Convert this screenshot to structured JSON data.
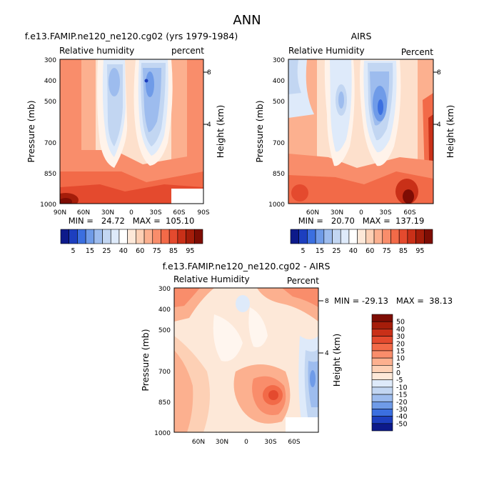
{
  "figure_title": "ANN",
  "chart_data": [
    {
      "type": "heatmap",
      "id": "model",
      "title": "f.e13.FAMIP.ne120_ne120.cg02 (yrs 1979-1984)",
      "left_label": "Relative humidity",
      "right_label": "percent",
      "ylabel": "Pressure (mb)",
      "y2label": "Height (km)",
      "x_ticks": [
        "90N",
        "60N",
        "30N",
        "0",
        "30S",
        "60S",
        "90S"
      ],
      "y_ticks": [
        "300",
        "400",
        "500",
        "700",
        "850",
        "1000"
      ],
      "y2_ticks": [
        "8",
        "4"
      ],
      "stats": "MIN =   24.72   MAX =  105.10",
      "colorbar_labels": [
        "5",
        "15",
        "25",
        "40",
        "60",
        "75",
        "85",
        "95"
      ],
      "colorbar_colors": [
        "#0d1a8a",
        "#1d3fbf",
        "#3b6fe0",
        "#6f9be8",
        "#9dbcee",
        "#c2d6f2",
        "#deeafa",
        "#ffffff",
        "#fde8d8",
        "#fdd0b5",
        "#fcb08f",
        "#f98d6b",
        "#f26a48",
        "#e44a2e",
        "#c93018",
        "#a51d0a",
        "#7e0d04"
      ],
      "description_values": "relative humidity percent by latitude and pressure"
    },
    {
      "type": "heatmap",
      "id": "obs",
      "title": "AIRS",
      "left_label": "Relative Humidity",
      "right_label": "Percent",
      "ylabel": "Pressure (mb)",
      "y2label": "Height (km)",
      "x_ticks": [
        "60N",
        "30N",
        "0",
        "30S",
        "60S"
      ],
      "y_ticks": [
        "300",
        "400",
        "500",
        "700",
        "850",
        "1000"
      ],
      "y2_ticks": [
        "8",
        "4"
      ],
      "stats": "MIN =   20.70   MAX =  137.19",
      "colorbar_labels": [
        "5",
        "15",
        "25",
        "40",
        "60",
        "75",
        "85",
        "95"
      ],
      "colorbar_colors": [
        "#0d1a8a",
        "#1d3fbf",
        "#3b6fe0",
        "#6f9be8",
        "#9dbcee",
        "#c2d6f2",
        "#deeafa",
        "#ffffff",
        "#fde8d8",
        "#fdd0b5",
        "#fcb08f",
        "#f98d6b",
        "#f26a48",
        "#e44a2e",
        "#c93018",
        "#a51d0a",
        "#7e0d04"
      ]
    },
    {
      "type": "heatmap",
      "id": "diff",
      "title": "f.e13.FAMIP.ne120_ne120.cg02 - AIRS",
      "left_label": "Relative Humidity",
      "right_label": "Percent",
      "ylabel": "Pressure (mb)",
      "y2label": "Height (km)",
      "x_ticks": [
        "60N",
        "30N",
        "0",
        "30S",
        "60S"
      ],
      "y_ticks": [
        "300",
        "400",
        "500",
        "700",
        "850",
        "1000"
      ],
      "y2_ticks": [
        "8",
        "4"
      ],
      "stats": "MIN = -29.13   MAX =  38.13",
      "colorbar_labels": [
        "50",
        "40",
        "30",
        "20",
        "15",
        "10",
        "5",
        "0",
        "-5",
        "-10",
        "-15",
        "-20",
        "-30",
        "-40",
        "-50"
      ],
      "colorbar_colors": [
        "#7e0d04",
        "#a51d0a",
        "#c93018",
        "#e44a2e",
        "#f26a48",
        "#f98d6b",
        "#fcb08f",
        "#fdd0b5",
        "#fde8d8",
        "#deeafa",
        "#c2d6f2",
        "#9dbcee",
        "#6f9be8",
        "#3b6fe0",
        "#1d3fbf",
        "#0d1a8a"
      ]
    }
  ]
}
